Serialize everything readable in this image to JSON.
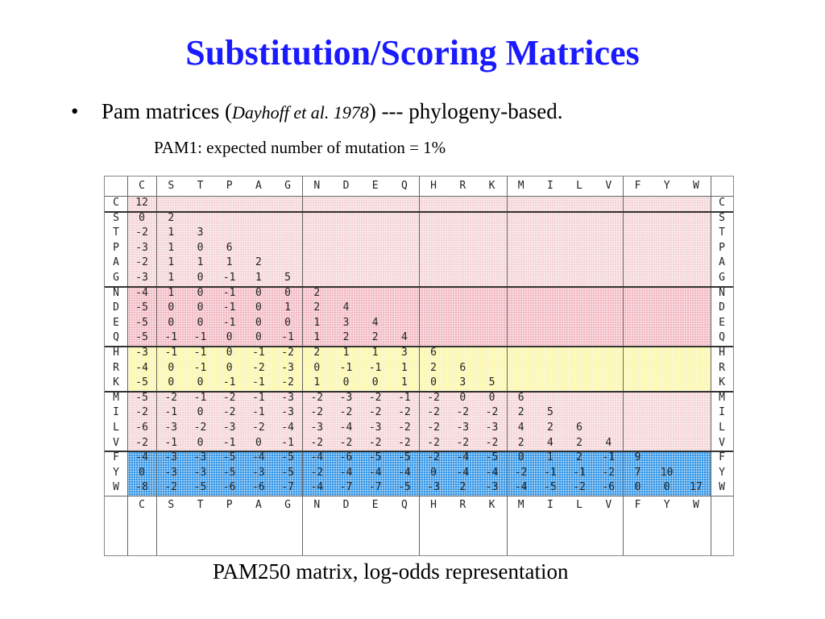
{
  "slide": {
    "title": "Substitution/Scoring Matrices",
    "bullet_symbol": "•",
    "bullet_text_before": "Pam matrices (",
    "bullet_citation": "Dayhoff et al. 1978",
    "bullet_text_after": ") --- phylogeny-based.",
    "sub_text": "PAM1: expected number of mutation = 1%",
    "caption": "PAM250 matrix, log-odds representation"
  },
  "matrix": {
    "amino_acids": [
      "C",
      "S",
      "T",
      "P",
      "A",
      "G",
      "N",
      "D",
      "E",
      "Q",
      "H",
      "R",
      "K",
      "M",
      "I",
      "L",
      "V",
      "F",
      "Y",
      "W"
    ],
    "groups": [
      {
        "members": [
          "C"
        ],
        "color": "#f4d3d6"
      },
      {
        "members": [
          "S",
          "T",
          "P",
          "A",
          "G"
        ],
        "color": "#f4d3d6"
      },
      {
        "members": [
          "N",
          "D",
          "E",
          "Q"
        ],
        "color": "#f2b8c0"
      },
      {
        "members": [
          "H",
          "R",
          "K"
        ],
        "color": "#fbf6a8"
      },
      {
        "members": [
          "M",
          "I",
          "L",
          "V"
        ],
        "color": "#f4d3d6"
      },
      {
        "members": [
          "F",
          "Y",
          "W"
        ],
        "color": "#2f93e6"
      }
    ],
    "rows": [
      [
        12
      ],
      [
        0,
        2
      ],
      [
        -2,
        1,
        3
      ],
      [
        -3,
        1,
        0,
        6
      ],
      [
        -2,
        1,
        1,
        1,
        2
      ],
      [
        -3,
        1,
        0,
        -1,
        1,
        5
      ],
      [
        -4,
        1,
        0,
        -1,
        0,
        0,
        2
      ],
      [
        -5,
        0,
        0,
        -1,
        0,
        1,
        2,
        4
      ],
      [
        -5,
        0,
        0,
        -1,
        0,
        0,
        1,
        3,
        4
      ],
      [
        -5,
        -1,
        -1,
        0,
        0,
        -1,
        1,
        2,
        2,
        4
      ],
      [
        -3,
        -1,
        -1,
        0,
        -1,
        -2,
        2,
        1,
        1,
        3,
        6
      ],
      [
        -4,
        0,
        -1,
        0,
        -2,
        -3,
        0,
        -1,
        -1,
        1,
        2,
        6
      ],
      [
        -5,
        0,
        0,
        -1,
        -1,
        -2,
        1,
        0,
        0,
        1,
        0,
        3,
        5
      ],
      [
        -5,
        -2,
        -1,
        -2,
        -1,
        -3,
        -2,
        -3,
        -2,
        -1,
        -2,
        0,
        0,
        6
      ],
      [
        -2,
        -1,
        0,
        -2,
        -1,
        -3,
        -2,
        -2,
        -2,
        -2,
        -2,
        -2,
        -2,
        2,
        5
      ],
      [
        -6,
        -3,
        -2,
        -3,
        -2,
        -4,
        -3,
        -4,
        -3,
        -2,
        -2,
        -3,
        -3,
        4,
        2,
        6
      ],
      [
        -2,
        -1,
        0,
        -1,
        0,
        -1,
        -2,
        -2,
        -2,
        -2,
        -2,
        -2,
        -2,
        2,
        4,
        2,
        4
      ],
      [
        -4,
        -3,
        -3,
        -5,
        -4,
        -5,
        -4,
        -6,
        -5,
        -5,
        -2,
        -4,
        -5,
        0,
        1,
        2,
        -1,
        9
      ],
      [
        0,
        -3,
        -3,
        -5,
        -3,
        -5,
        -2,
        -4,
        -4,
        -4,
        0,
        -4,
        -4,
        -2,
        -1,
        -1,
        -2,
        7,
        10
      ],
      [
        -8,
        -2,
        -5,
        -6,
        -6,
        -7,
        -4,
        -7,
        -7,
        -5,
        -3,
        2,
        -3,
        -4,
        -5,
        -2,
        -6,
        0,
        0,
        17
      ]
    ]
  }
}
